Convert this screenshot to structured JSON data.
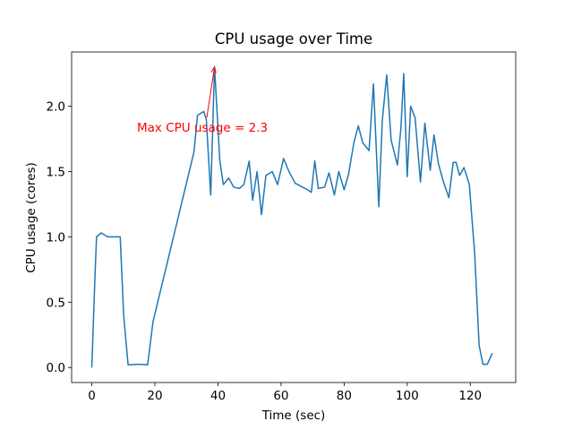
{
  "chart_data": {
    "type": "line",
    "title": "CPU usage over Time",
    "x_label": "Time (sec)",
    "y_label": "CPU usage (cores)",
    "annotation": "Max CPU usage = 2.3",
    "annotation_color": "#ff0000",
    "color": "#1f77b4",
    "grid": false,
    "x": [
      0,
      1,
      1.5,
      3,
      5,
      7,
      9,
      10.1,
      11.5,
      15,
      17.7,
      19.4,
      32.4,
      33.5,
      35.5,
      36.3,
      37.7,
      38.9,
      40.6,
      41.7,
      43.4,
      45,
      46.8,
      48.2,
      49.9,
      51,
      52.4,
      53.8,
      55.2,
      57.2,
      58.9,
      60.8,
      62.5,
      64.5,
      66.8,
      68.5,
      69.6,
      70.7,
      71.8,
      73.8,
      75.2,
      76.9,
      78.3,
      80,
      81.4,
      83.1,
      84.5,
      85.9,
      87.9,
      89.3,
      91,
      92.1,
      93.5,
      94.9,
      96.9,
      98,
      98.9,
      100,
      101.1,
      102.5,
      104.2,
      105.6,
      107.3,
      108.5,
      109.9,
      111.5,
      113.2,
      114.6,
      115.5,
      116.6,
      118,
      119.7,
      121.4,
      122.8,
      124,
      125.4,
      127
    ],
    "values": [
      0,
      0.7,
      1.0,
      1.03,
      1.0,
      1.0,
      1.0,
      0.4,
      0.02,
      0.025,
      0.02,
      0.35,
      1.65,
      1.93,
      1.96,
      1.9,
      1.32,
      2.3,
      1.58,
      1.4,
      1.45,
      1.38,
      1.37,
      1.4,
      1.58,
      1.28,
      1.5,
      1.17,
      1.47,
      1.5,
      1.4,
      1.6,
      1.5,
      1.41,
      1.38,
      1.36,
      1.34,
      1.58,
      1.37,
      1.38,
      1.49,
      1.32,
      1.5,
      1.36,
      1.48,
      1.72,
      1.85,
      1.72,
      1.66,
      2.17,
      1.23,
      1.89,
      2.24,
      1.74,
      1.55,
      1.83,
      2.25,
      1.46,
      2.0,
      1.91,
      1.42,
      1.87,
      1.51,
      1.78,
      1.56,
      1.42,
      1.3,
      1.57,
      1.57,
      1.47,
      1.53,
      1.4,
      0.87,
      0.17,
      0.025,
      0.025,
      0.11
    ],
    "xlim": [
      -6.4,
      134.4
    ],
    "ylim": [
      -0.115,
      2.415
    ],
    "xticks": [
      0,
      20,
      40,
      60,
      80,
      100,
      120
    ],
    "yticks": [
      {
        "value": 0,
        "label": "0.0"
      },
      0.5,
      {
        "value": 1,
        "label": "1.0"
      },
      1.5,
      {
        "value": 2,
        "label": "2.0"
      }
    ]
  }
}
